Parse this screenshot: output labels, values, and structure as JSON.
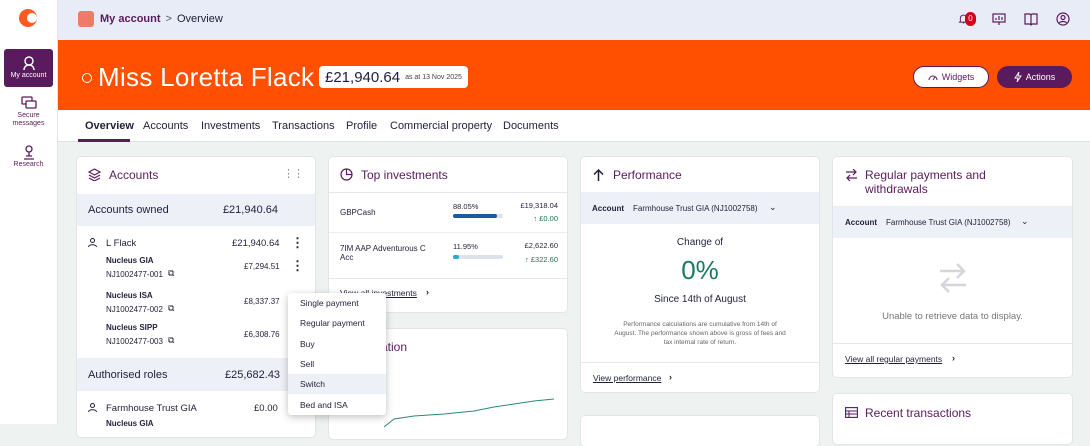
{
  "nav": {
    "items": [
      {
        "label": "My account",
        "icon": "account-icon"
      },
      {
        "label_1": "Secure",
        "label_2": "messages",
        "icon": "chat-icon"
      },
      {
        "label": "Research",
        "icon": "research-icon"
      }
    ]
  },
  "topbar": {
    "breadcrumb_link": "My account",
    "breadcrumb_sep": ">",
    "breadcrumb_current": "Overview",
    "notification_count": "0"
  },
  "hero": {
    "name": "Miss Loretta Flack",
    "balance": "£21,940.64",
    "as_at": "as at 13 Nov 2025",
    "widgets_label": "Widgets",
    "actions_label": "Actions"
  },
  "tabs": [
    "Overview",
    "Accounts",
    "Investments",
    "Transactions",
    "Profile",
    "Commercial property",
    "Documents"
  ],
  "accounts": {
    "title": "Accounts",
    "owned_label": "Accounts owned",
    "owned_total": "£21,940.64",
    "holder": "L Flack",
    "holder_total": "£21,940.64",
    "products": [
      {
        "name": "Nucleus GIA",
        "ref": "NJ1002477-001",
        "value": "£7,294.51"
      },
      {
        "name": "Nucleus ISA",
        "ref": "NJ1002477-002",
        "value": "£8,337.37"
      },
      {
        "name": "Nucleus SIPP",
        "ref": "NJ1002477-003",
        "value": "£6,308.76"
      }
    ],
    "authorised_label": "Authorised roles",
    "authorised_total": "£25,682.43",
    "trust_name": "Farmhouse Trust GIA",
    "trust_value": "£0.00",
    "trust_sub": "Nucleus GIA"
  },
  "menu": {
    "items": [
      "Single payment",
      "Regular payment",
      "Buy",
      "Sell",
      "Switch",
      "Bed and ISA"
    ]
  },
  "top_investments": {
    "title": "Top investments",
    "rows": [
      {
        "name": "GBPCash",
        "pct": "88.05%",
        "pct_value": 88.05,
        "value": "£19,318.04",
        "change": "↑ £0.00"
      },
      {
        "name_1": "7IM AAP Adventurous C",
        "name_2": "Acc",
        "pct": "11.95%",
        "pct_value": 11.95,
        "value": "£2,622.60",
        "change": "↑ £322.60"
      }
    ],
    "link": "View all investments"
  },
  "valuation": {
    "title_fragment": "ation"
  },
  "performance": {
    "title": "Performance",
    "account_label": "Account",
    "account_value": "Farmhouse Trust GIA (NJ1002758)",
    "change_label": "Change of",
    "change_value": "0%",
    "since": "Since 14th of August",
    "note_1": "Performance calculations are cumulative from 14th of",
    "note_2": "August. The performance shown above is gross of fees and",
    "note_3": "tax internal rate of return.",
    "link": "View performance"
  },
  "regular": {
    "title_1": "Regular payments and",
    "title_2": "withdrawals",
    "account_label": "Account",
    "account_value": "Farmhouse Trust GIA (NJ1002758)",
    "empty": "Unable to retrieve data to display.",
    "link": "View all regular payments"
  },
  "recent": {
    "title": "Recent transactions"
  },
  "colors": {
    "brand_orange": "#fe5000",
    "brand_purple": "#5a1a5e",
    "bar_blue": "#1a5c9e"
  }
}
